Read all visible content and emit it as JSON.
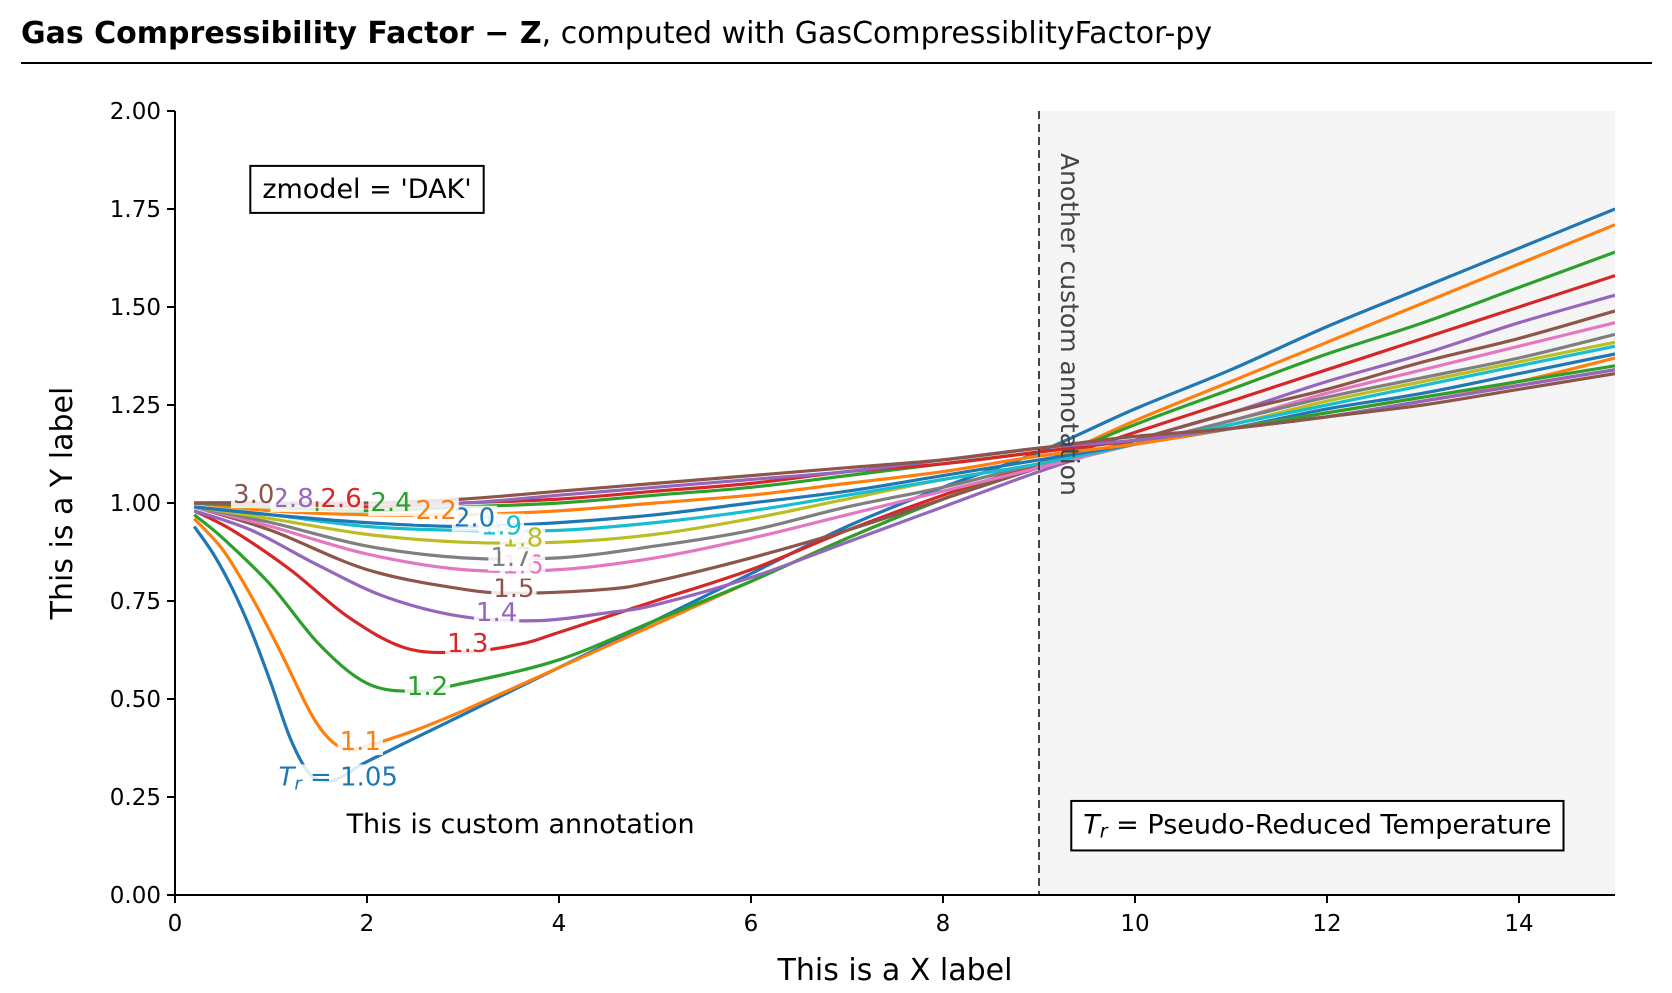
{
  "header": {
    "title_bold": "Gas Compressibility Factor − Z",
    "title_rest": ", computed with GasCompressiblityFactor-py"
  },
  "chart_data": {
    "type": "line",
    "xlabel": "This is a X label",
    "ylabel": "This is a Y label",
    "xlim": [
      0,
      15
    ],
    "ylim": [
      0,
      2
    ],
    "xticks": [
      "0",
      "2",
      "4",
      "6",
      "8",
      "10",
      "12",
      "14"
    ],
    "yticks": [
      "0.00",
      "0.25",
      "0.50",
      "0.75",
      "1.00",
      "1.25",
      "1.50",
      "1.75",
      "2.00"
    ],
    "grid": false,
    "shaded_region": {
      "x_from": 9,
      "x_to": 15
    },
    "vline": {
      "x": 9,
      "label": "Another custom annotation"
    },
    "annotations": [
      {
        "text": "zmodel = 'DAK'",
        "x": 2.0,
        "y": 1.8,
        "boxed": true
      },
      {
        "text": "This is custom annotation",
        "x": 3.6,
        "y": 0.18,
        "boxed": false
      },
      {
        "text": "Pseudo-Reduced Temperature",
        "prefix_symbol": "T",
        "prefix_sub": "r",
        "x": 11.9,
        "y": 0.18,
        "boxed": true
      }
    ],
    "series": [
      {
        "label": "Tr = 1.05",
        "label_prefix": "T",
        "label_sub": "r",
        "label_text": " = 1.05",
        "color": "#1f77b4",
        "label_at": [
          1.7,
          0.3
        ],
        "x": [
          0.2,
          0.4,
          0.6,
          0.8,
          1.0,
          1.2,
          1.4,
          1.6,
          1.8,
          2,
          3,
          4,
          5,
          6,
          7,
          8,
          9,
          10,
          11,
          12,
          13,
          14,
          15
        ],
        "y": [
          0.94,
          0.87,
          0.78,
          0.67,
          0.54,
          0.4,
          0.31,
          0.29,
          0.31,
          0.34,
          0.46,
          0.58,
          0.7,
          0.82,
          0.94,
          1.04,
          1.13,
          1.24,
          1.34,
          1.45,
          1.55,
          1.65,
          1.75
        ]
      },
      {
        "label": "1.1",
        "color": "#ff7f0e",
        "label_at": [
          1.93,
          0.39
        ],
        "x": [
          0.2,
          0.5,
          0.8,
          1.1,
          1.4,
          1.6,
          1.8,
          2,
          2.5,
          3,
          4,
          5,
          6,
          7,
          8,
          9,
          10,
          11,
          12,
          13,
          14,
          15
        ],
        "y": [
          0.96,
          0.88,
          0.76,
          0.62,
          0.47,
          0.4,
          0.37,
          0.38,
          0.42,
          0.47,
          0.58,
          0.69,
          0.8,
          0.91,
          1.01,
          1.1,
          1.21,
          1.31,
          1.41,
          1.51,
          1.61,
          1.71
        ]
      },
      {
        "label": "1.2",
        "color": "#2ca02c",
        "label_at": [
          2.63,
          0.53
        ],
        "x": [
          0.2,
          0.5,
          1.0,
          1.5,
          2.0,
          2.5,
          3,
          4,
          5,
          6,
          7,
          8,
          9,
          10,
          11,
          12,
          13,
          14,
          15
        ],
        "y": [
          0.97,
          0.91,
          0.79,
          0.64,
          0.54,
          0.52,
          0.54,
          0.6,
          0.7,
          0.8,
          0.91,
          1.01,
          1.1,
          1.2,
          1.29,
          1.38,
          1.46,
          1.55,
          1.64
        ]
      },
      {
        "label": "1.3",
        "color": "#d62728",
        "label_at": [
          3.05,
          0.64
        ],
        "x": [
          0.2,
          0.6,
          1.2,
          1.8,
          2.4,
          3.0,
          3.6,
          4,
          5,
          6,
          7,
          8,
          9,
          10,
          11,
          12,
          13,
          14,
          15
        ],
        "y": [
          0.98,
          0.93,
          0.83,
          0.71,
          0.63,
          0.62,
          0.64,
          0.67,
          0.75,
          0.83,
          0.93,
          1.02,
          1.1,
          1.18,
          1.26,
          1.34,
          1.42,
          1.5,
          1.58
        ]
      },
      {
        "label": "1.4",
        "color": "#9467bd",
        "label_at": [
          3.35,
          0.72
        ],
        "x": [
          0.2,
          0.8,
          1.5,
          2.2,
          3.0,
          3.8,
          4.5,
          5,
          6,
          7,
          8,
          9,
          10,
          11,
          12,
          13,
          14,
          15
        ],
        "y": [
          0.98,
          0.93,
          0.84,
          0.76,
          0.71,
          0.7,
          0.72,
          0.74,
          0.81,
          0.9,
          0.99,
          1.08,
          1.16,
          1.23,
          1.31,
          1.38,
          1.46,
          1.53
        ]
      },
      {
        "label": "1.5",
        "color": "#8c564b",
        "label_at": [
          3.53,
          0.78
        ],
        "x": [
          0.2,
          1,
          2,
          3,
          3.6,
          4.5,
          5,
          6,
          7,
          8,
          9,
          10,
          11,
          12,
          13,
          14,
          15
        ],
        "y": [
          0.99,
          0.93,
          0.83,
          0.78,
          0.77,
          0.78,
          0.8,
          0.86,
          0.93,
          1.01,
          1.09,
          1.16,
          1.23,
          1.29,
          1.36,
          1.42,
          1.49
        ]
      },
      {
        "label": "1.6",
        "color": "#e377c2",
        "label_at": [
          3.62,
          0.84
        ],
        "x": [
          0.2,
          1,
          2,
          3,
          4,
          5,
          6,
          7,
          8,
          9,
          10,
          11,
          12,
          13,
          14,
          15
        ],
        "y": [
          0.99,
          0.94,
          0.87,
          0.83,
          0.83,
          0.86,
          0.91,
          0.97,
          1.03,
          1.09,
          1.15,
          1.21,
          1.28,
          1.34,
          1.4,
          1.46
        ]
      },
      {
        "label": "1.7",
        "color": "#7f7f7f",
        "label_at": [
          3.5,
          0.86
        ],
        "x": [
          0.2,
          1,
          2,
          3,
          4,
          5,
          6,
          7,
          8,
          9,
          10,
          11,
          12,
          13,
          14,
          15
        ],
        "y": [
          0.99,
          0.95,
          0.89,
          0.86,
          0.86,
          0.89,
          0.93,
          0.99,
          1.04,
          1.1,
          1.15,
          1.21,
          1.27,
          1.32,
          1.37,
          1.43
        ]
      },
      {
        "label": "1.8",
        "color": "#bcbd22",
        "label_at": [
          3.62,
          0.91
        ],
        "x": [
          0.2,
          1,
          2,
          3,
          4,
          5,
          6,
          7,
          8,
          9,
          10,
          11,
          12,
          13,
          14,
          15
        ],
        "y": [
          0.99,
          0.96,
          0.92,
          0.9,
          0.9,
          0.92,
          0.96,
          1.01,
          1.06,
          1.1,
          1.15,
          1.2,
          1.26,
          1.31,
          1.36,
          1.41
        ]
      },
      {
        "label": "1.9",
        "color": "#17becf",
        "label_at": [
          3.4,
          0.94
        ],
        "x": [
          0.2,
          1,
          2,
          3,
          4,
          5,
          6,
          7,
          8,
          9,
          10,
          11,
          12,
          13,
          14,
          15
        ],
        "y": [
          0.99,
          0.97,
          0.94,
          0.93,
          0.93,
          0.95,
          0.98,
          1.02,
          1.06,
          1.1,
          1.15,
          1.2,
          1.25,
          1.3,
          1.35,
          1.4
        ]
      },
      {
        "label": "2.0",
        "color": "#1f77b4",
        "label_at": [
          3.12,
          0.96
        ],
        "x": [
          0.2,
          1,
          2,
          3,
          4,
          5,
          6,
          7,
          8,
          9,
          10,
          11,
          12,
          13,
          14,
          15
        ],
        "y": [
          0.99,
          0.97,
          0.95,
          0.94,
          0.95,
          0.97,
          1.0,
          1.03,
          1.07,
          1.11,
          1.15,
          1.19,
          1.24,
          1.28,
          1.33,
          1.38
        ]
      },
      {
        "label": "2.2",
        "color": "#ff7f0e",
        "label_at": [
          2.72,
          0.98
        ],
        "x": [
          0.2,
          1,
          2,
          3,
          4,
          5,
          6,
          7,
          8,
          9,
          10,
          11,
          12,
          13,
          14,
          15
        ],
        "y": [
          1.0,
          0.98,
          0.97,
          0.97,
          0.98,
          1.0,
          1.02,
          1.05,
          1.08,
          1.12,
          1.15,
          1.19,
          1.23,
          1.27,
          1.31,
          1.37
        ]
      },
      {
        "label": "2.4",
        "color": "#2ca02c",
        "label_at": [
          2.25,
          1.0
        ],
        "x": [
          0.2,
          1,
          2,
          3,
          4,
          5,
          6,
          7,
          8,
          9,
          10,
          11,
          12,
          13,
          14,
          15
        ],
        "y": [
          1.0,
          0.99,
          0.98,
          0.99,
          1.0,
          1.02,
          1.04,
          1.07,
          1.1,
          1.13,
          1.16,
          1.19,
          1.23,
          1.27,
          1.31,
          1.35
        ]
      },
      {
        "label": "2.6",
        "color": "#d62728",
        "label_at": [
          1.73,
          1.01
        ],
        "x": [
          0.2,
          1,
          2,
          3,
          4,
          5,
          6,
          7,
          8,
          9,
          10,
          11,
          12,
          13,
          14,
          15
        ],
        "y": [
          1.0,
          1.0,
          0.99,
          1.0,
          1.01,
          1.03,
          1.05,
          1.08,
          1.1,
          1.13,
          1.16,
          1.19,
          1.22,
          1.26,
          1.3,
          1.34
        ]
      },
      {
        "label": "2.8",
        "color": "#9467bd",
        "label_at": [
          1.23,
          1.01
        ],
        "x": [
          0.2,
          1,
          2,
          3,
          4,
          5,
          6,
          7,
          8,
          9,
          10,
          11,
          12,
          13,
          14,
          15
        ],
        "y": [
          1.0,
          1.0,
          1.0,
          1.0,
          1.02,
          1.04,
          1.06,
          1.08,
          1.11,
          1.14,
          1.16,
          1.19,
          1.22,
          1.26,
          1.3,
          1.34
        ]
      },
      {
        "label": "3.0",
        "color": "#8c564b",
        "label_at": [
          0.82,
          1.02
        ],
        "x": [
          0.2,
          1,
          2,
          3,
          4,
          5,
          6,
          7,
          8,
          9,
          10,
          11,
          12,
          13,
          14,
          15
        ],
        "y": [
          1.0,
          1.0,
          1.0,
          1.01,
          1.03,
          1.05,
          1.07,
          1.09,
          1.11,
          1.14,
          1.17,
          1.19,
          1.22,
          1.25,
          1.29,
          1.33
        ]
      }
    ]
  }
}
